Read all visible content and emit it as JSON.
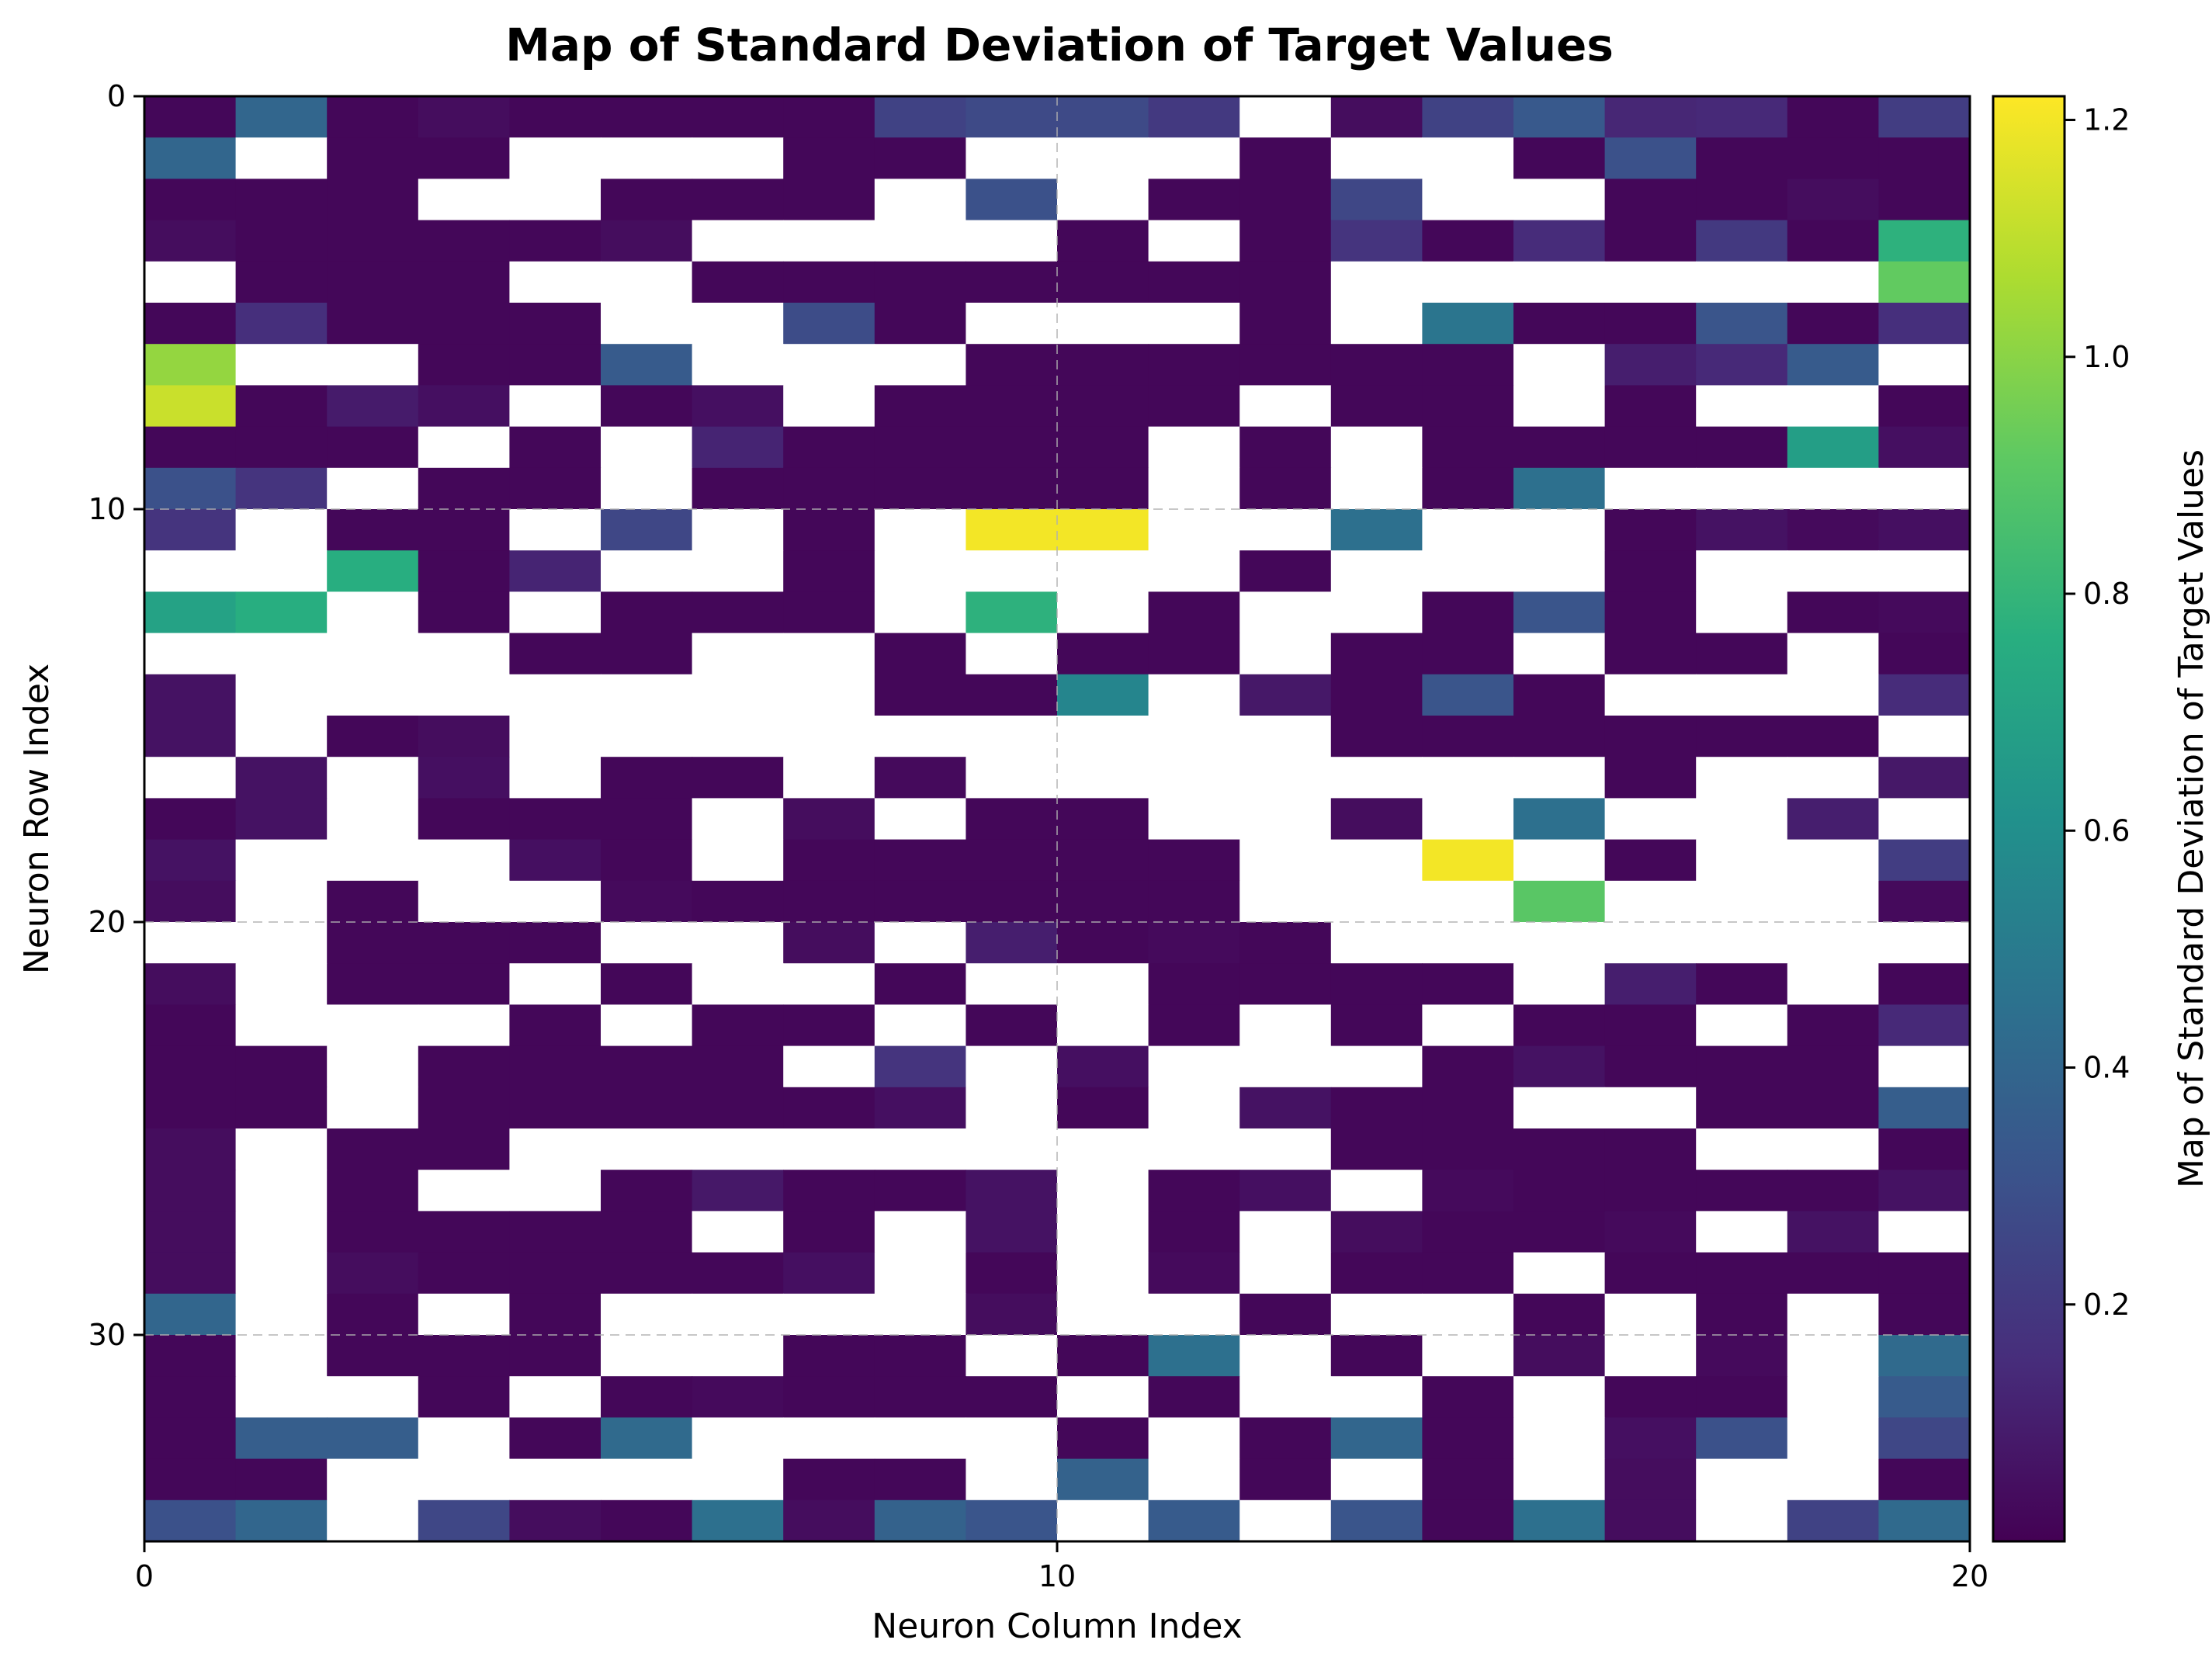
{
  "chart_data": {
    "type": "heatmap",
    "title": "Map of Standard Deviation of Target Values",
    "xlabel": "Neuron Column Index",
    "ylabel": "Neuron Row Index",
    "colorbar_label": "Map of Standard Deviation of Target Values",
    "colormap": "viridis",
    "missing_color": "#ffffff",
    "x_range": [
      0,
      20
    ],
    "y_range": [
      0,
      35
    ],
    "y_inverted": true,
    "vmin": 0.0,
    "vmax": 1.22,
    "x_ticks": [
      0,
      10,
      20
    ],
    "y_ticks": [
      0,
      10,
      20,
      30
    ],
    "colorbar_ticks": [
      0.2,
      0.4,
      0.6,
      0.8,
      1.0,
      1.2
    ],
    "grid": true,
    "n_cols": 20,
    "n_rows": 35,
    "values": [
      [
        0.02,
        0.4,
        0.02,
        0.04,
        0.02,
        0.02,
        0.02,
        0.02,
        0.24,
        0.27,
        0.27,
        0.2,
        null,
        0.04,
        0.24,
        0.34,
        0.13,
        0.14,
        0.02,
        0.22
      ],
      [
        0.4,
        null,
        0.02,
        0.02,
        null,
        null,
        null,
        0.02,
        0.02,
        null,
        null,
        null,
        0.02,
        null,
        null,
        0.02,
        0.3,
        0.02,
        0.02,
        0.02
      ],
      [
        0.02,
        0.02,
        0.02,
        null,
        null,
        0.02,
        0.02,
        0.02,
        null,
        0.3,
        null,
        0.02,
        0.02,
        0.26,
        null,
        null,
        0.02,
        0.02,
        0.04,
        0.02
      ],
      [
        0.04,
        0.02,
        0.02,
        0.02,
        0.02,
        0.04,
        null,
        null,
        null,
        null,
        0.02,
        null,
        0.02,
        0.18,
        0.02,
        0.15,
        0.02,
        0.2,
        0.02,
        0.78
      ],
      [
        null,
        0.02,
        0.02,
        0.02,
        null,
        null,
        0.02,
        0.02,
        0.02,
        0.02,
        0.02,
        0.02,
        0.02,
        null,
        null,
        null,
        null,
        null,
        null,
        0.92
      ],
      [
        0.02,
        0.16,
        0.02,
        0.02,
        0.02,
        null,
        null,
        0.28,
        0.02,
        null,
        null,
        null,
        0.02,
        null,
        0.47,
        0.02,
        0.02,
        0.32,
        0.02,
        0.16
      ],
      [
        1.02,
        null,
        null,
        0.02,
        0.02,
        0.35,
        null,
        null,
        null,
        0.02,
        0.02,
        0.02,
        0.02,
        0.02,
        0.02,
        null,
        0.1,
        0.14,
        0.35,
        null
      ],
      [
        1.12,
        0.02,
        0.09,
        0.05,
        null,
        0.02,
        0.05,
        null,
        0.02,
        0.02,
        0.02,
        0.02,
        null,
        0.02,
        0.02,
        null,
        0.02,
        null,
        null,
        0.02
      ],
      [
        0.02,
        0.02,
        0.02,
        null,
        0.02,
        null,
        0.12,
        0.02,
        0.02,
        0.02,
        0.02,
        null,
        0.02,
        null,
        0.02,
        0.02,
        0.02,
        0.02,
        0.68,
        0.05
      ],
      [
        0.3,
        0.18,
        null,
        0.02,
        0.02,
        null,
        0.02,
        0.02,
        0.02,
        0.02,
        0.02,
        null,
        0.02,
        null,
        0.02,
        0.45,
        null,
        null,
        null,
        null
      ],
      [
        0.18,
        null,
        0.02,
        0.02,
        null,
        0.26,
        null,
        0.02,
        null,
        1.2,
        1.2,
        null,
        null,
        0.45,
        null,
        null,
        0.02,
        0.06,
        0.03,
        0.05
      ],
      [
        null,
        null,
        0.76,
        0.02,
        0.12,
        null,
        null,
        0.02,
        null,
        null,
        null,
        null,
        0.02,
        null,
        null,
        null,
        0.02,
        null,
        null,
        null
      ],
      [
        0.7,
        0.76,
        null,
        0.02,
        null,
        0.02,
        0.02,
        0.02,
        null,
        0.78,
        null,
        0.02,
        null,
        null,
        0.02,
        0.32,
        0.02,
        null,
        0.02,
        0.03
      ],
      [
        null,
        null,
        null,
        null,
        0.02,
        0.02,
        null,
        null,
        0.02,
        null,
        0.02,
        0.02,
        null,
        0.02,
        0.02,
        null,
        0.02,
        0.02,
        null,
        0.02
      ],
      [
        0.06,
        null,
        null,
        null,
        null,
        null,
        null,
        null,
        0.02,
        0.02,
        0.55,
        null,
        0.08,
        0.02,
        0.32,
        0.02,
        null,
        null,
        null,
        0.15
      ],
      [
        0.06,
        null,
        0.02,
        0.04,
        null,
        null,
        null,
        null,
        null,
        null,
        null,
        null,
        null,
        0.02,
        0.02,
        0.02,
        0.02,
        0.02,
        0.02,
        null
      ],
      [
        null,
        0.06,
        null,
        0.05,
        null,
        0.02,
        0.02,
        null,
        0.03,
        null,
        null,
        null,
        null,
        null,
        null,
        null,
        0.02,
        null,
        null,
        0.08
      ],
      [
        0.02,
        0.06,
        null,
        0.02,
        0.02,
        0.02,
        null,
        0.04,
        null,
        0.02,
        0.02,
        null,
        null,
        0.04,
        null,
        0.45,
        null,
        null,
        0.1,
        null
      ],
      [
        0.06,
        null,
        null,
        null,
        0.05,
        0.02,
        null,
        0.02,
        0.02,
        0.02,
        0.02,
        0.02,
        null,
        null,
        1.2,
        null,
        0.02,
        null,
        null,
        0.22
      ],
      [
        0.04,
        null,
        0.02,
        null,
        null,
        0.03,
        0.02,
        0.02,
        0.02,
        0.02,
        0.02,
        0.02,
        null,
        null,
        null,
        0.9,
        null,
        null,
        null,
        0.03
      ],
      [
        null,
        null,
        0.02,
        0.02,
        0.02,
        null,
        null,
        0.04,
        null,
        0.1,
        0.02,
        0.03,
        0.02,
        null,
        null,
        null,
        null,
        null,
        null,
        null
      ],
      [
        0.04,
        null,
        0.02,
        0.02,
        null,
        0.02,
        null,
        null,
        0.02,
        null,
        null,
        0.02,
        0.02,
        0.02,
        0.02,
        null,
        0.1,
        0.02,
        null,
        0.02
      ],
      [
        0.02,
        null,
        null,
        null,
        0.02,
        null,
        0.02,
        0.02,
        null,
        0.02,
        null,
        0.02,
        null,
        0.02,
        null,
        0.02,
        0.02,
        null,
        0.02,
        0.14
      ],
      [
        0.02,
        0.02,
        null,
        0.02,
        0.02,
        0.02,
        0.02,
        null,
        0.18,
        null,
        0.05,
        null,
        null,
        null,
        0.02,
        0.06,
        0.02,
        0.02,
        0.02,
        null
      ],
      [
        0.02,
        0.02,
        null,
        0.02,
        0.02,
        0.02,
        0.02,
        0.02,
        0.05,
        null,
        0.02,
        null,
        0.06,
        0.02,
        0.02,
        null,
        null,
        0.02,
        0.02,
        0.36
      ],
      [
        0.04,
        null,
        0.02,
        0.02,
        null,
        null,
        null,
        null,
        null,
        null,
        null,
        null,
        null,
        0.02,
        0.02,
        0.02,
        0.02,
        null,
        null,
        0.02
      ],
      [
        0.04,
        null,
        0.02,
        null,
        null,
        0.02,
        0.08,
        0.02,
        0.02,
        0.06,
        null,
        0.02,
        0.05,
        null,
        0.03,
        0.02,
        0.02,
        0.02,
        0.02,
        0.06
      ],
      [
        0.04,
        null,
        0.02,
        0.02,
        0.02,
        0.02,
        null,
        0.02,
        null,
        0.06,
        null,
        0.02,
        null,
        0.04,
        0.02,
        0.02,
        0.03,
        null,
        0.06,
        null
      ],
      [
        0.04,
        null,
        0.04,
        0.02,
        0.02,
        0.02,
        0.02,
        0.05,
        null,
        0.02,
        null,
        0.03,
        null,
        0.02,
        0.02,
        null,
        0.02,
        0.02,
        0.02,
        0.02
      ],
      [
        0.4,
        null,
        0.02,
        null,
        0.02,
        null,
        null,
        null,
        null,
        0.04,
        null,
        null,
        0.02,
        null,
        null,
        0.02,
        null,
        0.02,
        null,
        0.02
      ],
      [
        0.02,
        null,
        0.02,
        0.02,
        0.02,
        null,
        null,
        0.02,
        0.02,
        null,
        0.02,
        0.45,
        null,
        0.02,
        null,
        0.04,
        null,
        0.03,
        null,
        0.42
      ],
      [
        0.02,
        null,
        null,
        0.02,
        null,
        0.02,
        0.03,
        0.02,
        0.02,
        0.02,
        null,
        0.02,
        null,
        null,
        0.02,
        null,
        0.02,
        0.02,
        null,
        0.35
      ],
      [
        0.02,
        0.36,
        0.36,
        null,
        0.02,
        0.42,
        null,
        null,
        null,
        null,
        0.02,
        null,
        0.02,
        0.4,
        0.02,
        null,
        0.05,
        0.3,
        null,
        0.26
      ],
      [
        0.02,
        0.02,
        null,
        null,
        null,
        null,
        null,
        0.02,
        0.02,
        null,
        0.38,
        null,
        0.02,
        null,
        0.02,
        null,
        0.04,
        null,
        null,
        0.02
      ],
      [
        0.3,
        0.4,
        null,
        0.26,
        0.04,
        0.02,
        0.45,
        0.04,
        0.38,
        0.32,
        null,
        0.35,
        null,
        0.32,
        0.02,
        0.45,
        0.04,
        null,
        0.24,
        0.42
      ]
    ]
  }
}
